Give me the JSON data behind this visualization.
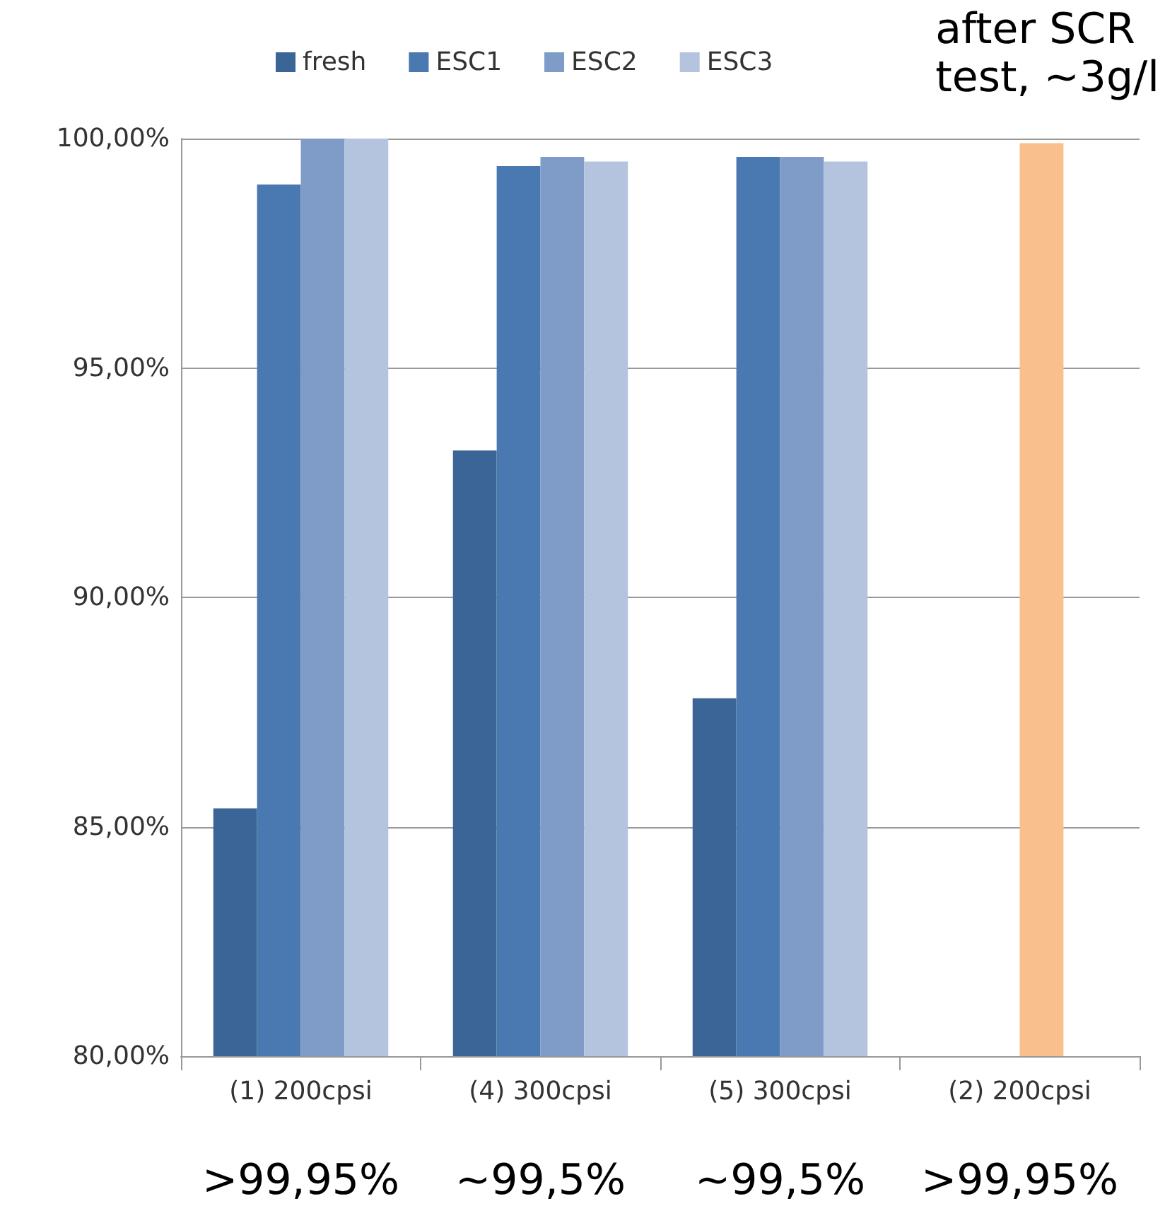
{
  "chart_data": {
    "type": "bar",
    "categories": [
      "(1) 200cpsi",
      "(4) 300cpsi",
      "(5) 300cpsi",
      "(2) 200cpsi"
    ],
    "series": [
      {
        "name": "fresh",
        "color": "#3b6596",
        "values": [
          85.4,
          93.2,
          87.8,
          null
        ]
      },
      {
        "name": "ESC1",
        "color": "#4a78b0",
        "values": [
          99.0,
          99.4,
          99.6,
          null
        ]
      },
      {
        "name": "ESC2",
        "color": "#7f9cc9",
        "colors": [
          "#7f9cc9",
          "#7f9cc9",
          "#7f9cc9",
          "#f9bf8c"
        ],
        "values": [
          100,
          99.6,
          99.6,
          99.9
        ]
      },
      {
        "name": "ESC3",
        "color": "#b4c4de",
        "values": [
          100,
          99.5,
          99.5,
          null
        ]
      }
    ],
    "ylim": [
      80,
      100
    ],
    "yticks": [
      {
        "value": 80,
        "label": "80,00%"
      },
      {
        "value": 85,
        "label": "85,00%"
      },
      {
        "value": 90,
        "label": "90,00%"
      },
      {
        "value": 95,
        "label": "95,00%"
      },
      {
        "value": 100,
        "label": "100,00%"
      }
    ],
    "grid": "y",
    "legend": "top",
    "annotations": [
      "after SCR\ntest, ~3g/l",
      ">99,95%",
      "~99,5%",
      "~99,5%",
      ">99,95%"
    ]
  }
}
